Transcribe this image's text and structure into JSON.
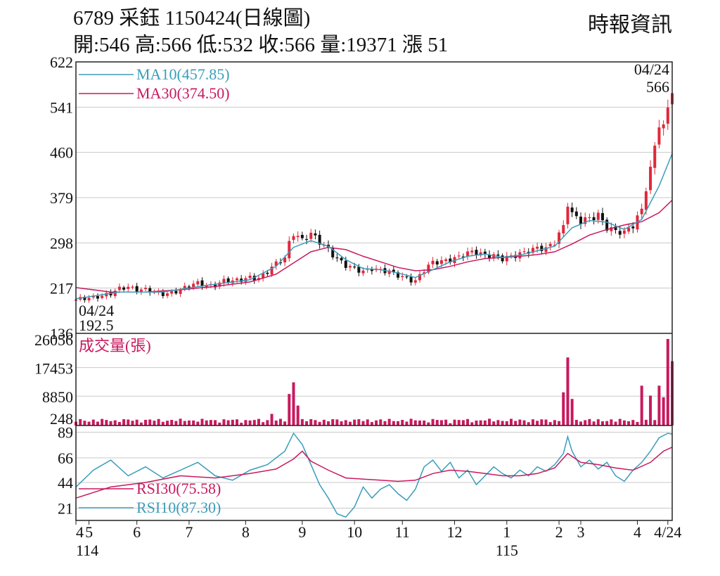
{
  "header": {
    "title": "6789  采鈺 1150424(日線圖)",
    "ohlc": "開:546 高:566 低:532 收:566 量:19371 漲 51",
    "source": "時報資訊"
  },
  "colors": {
    "up": "#e0283a",
    "down": "#111111",
    "ma10": "#3a9dba",
    "ma30": "#c8195e",
    "rsi30": "#c8195e",
    "rsi10": "#3a9dba",
    "volume": "#c8195e",
    "grid": "#c8c8c8",
    "frame": "#222222"
  },
  "chart_data": [
    {
      "type": "candlestick",
      "name": "price",
      "ylim": [
        136,
        622
      ],
      "yticks": [
        "622",
        "541",
        "460",
        "379",
        "298",
        "217",
        "136"
      ],
      "legend": [
        "MA10(457.85)",
        "MA30(374.50)"
      ],
      "annotations": {
        "last_date": "04/24",
        "last_close": "566",
        "low_date": "04/24",
        "low_value": "192.5"
      },
      "price_series": [
        [
          0,
          195
        ],
        [
          4,
          202
        ],
        [
          8,
          206
        ],
        [
          10,
          215
        ],
        [
          12,
          220
        ],
        [
          14,
          216
        ],
        [
          16,
          214
        ],
        [
          18,
          208
        ],
        [
          20,
          206
        ],
        [
          22,
          210
        ],
        [
          24,
          215
        ],
        [
          26,
          220
        ],
        [
          28,
          225
        ],
        [
          30,
          222
        ],
        [
          32,
          224
        ],
        [
          34,
          230
        ],
        [
          36,
          228
        ],
        [
          38,
          232
        ],
        [
          40,
          238
        ],
        [
          42,
          235
        ],
        [
          44,
          245
        ],
        [
          46,
          260
        ],
        [
          48,
          272
        ],
        [
          49,
          300
        ],
        [
          50,
          318
        ],
        [
          51,
          310
        ],
        [
          52,
          302
        ],
        [
          54,
          312
        ],
        [
          56,
          300
        ],
        [
          58,
          288
        ],
        [
          60,
          270
        ],
        [
          62,
          256
        ],
        [
          64,
          250
        ],
        [
          66,
          248
        ],
        [
          68,
          254
        ],
        [
          70,
          248
        ],
        [
          72,
          245
        ],
        [
          74,
          240
        ],
        [
          76,
          236
        ],
        [
          78,
          230
        ],
        [
          80,
          248
        ],
        [
          82,
          262
        ],
        [
          84,
          266
        ],
        [
          86,
          270
        ],
        [
          88,
          272
        ],
        [
          90,
          278
        ],
        [
          92,
          282
        ],
        [
          94,
          278
        ],
        [
          96,
          276
        ],
        [
          98,
          268
        ],
        [
          100,
          272
        ],
        [
          102,
          280
        ],
        [
          104,
          286
        ],
        [
          106,
          288
        ],
        [
          108,
          285
        ],
        [
          110,
          300
        ],
        [
          112,
          330
        ],
        [
          113,
          372
        ],
        [
          114,
          350
        ],
        [
          116,
          335
        ],
        [
          118,
          340
        ],
        [
          120,
          350
        ],
        [
          122,
          328
        ],
        [
          124,
          318
        ],
        [
          126,
          314
        ],
        [
          128,
          330
        ],
        [
          130,
          360
        ],
        [
          131,
          400
        ],
        [
          132,
          430
        ],
        [
          133,
          468
        ],
        [
          134,
          510
        ],
        [
          135,
          500
        ],
        [
          136,
          535
        ],
        [
          137,
          566
        ]
      ],
      "ma10": [
        [
          0,
          198
        ],
        [
          10,
          210
        ],
        [
          20,
          210
        ],
        [
          30,
          222
        ],
        [
          40,
          232
        ],
        [
          46,
          256
        ],
        [
          50,
          290
        ],
        [
          54,
          302
        ],
        [
          58,
          292
        ],
        [
          62,
          268
        ],
        [
          66,
          252
        ],
        [
          70,
          250
        ],
        [
          74,
          244
        ],
        [
          78,
          236
        ],
        [
          82,
          250
        ],
        [
          86,
          264
        ],
        [
          90,
          274
        ],
        [
          94,
          278
        ],
        [
          98,
          272
        ],
        [
          102,
          276
        ],
        [
          106,
          284
        ],
        [
          110,
          292
        ],
        [
          114,
          325
        ],
        [
          118,
          338
        ],
        [
          122,
          335
        ],
        [
          126,
          322
        ],
        [
          130,
          340
        ],
        [
          134,
          400
        ],
        [
          137,
          457.85
        ]
      ],
      "ma30": [
        [
          0,
          218
        ],
        [
          8,
          210
        ],
        [
          16,
          210
        ],
        [
          24,
          214
        ],
        [
          32,
          220
        ],
        [
          40,
          228
        ],
        [
          46,
          242
        ],
        [
          50,
          262
        ],
        [
          54,
          282
        ],
        [
          58,
          290
        ],
        [
          62,
          286
        ],
        [
          66,
          274
        ],
        [
          70,
          264
        ],
        [
          74,
          254
        ],
        [
          78,
          248
        ],
        [
          82,
          250
        ],
        [
          86,
          256
        ],
        [
          90,
          264
        ],
        [
          94,
          270
        ],
        [
          98,
          272
        ],
        [
          102,
          274
        ],
        [
          106,
          277
        ],
        [
          110,
          282
        ],
        [
          114,
          296
        ],
        [
          118,
          312
        ],
        [
          122,
          322
        ],
        [
          126,
          330
        ],
        [
          130,
          336
        ],
        [
          134,
          352
        ],
        [
          137,
          374.5
        ]
      ]
    },
    {
      "type": "bar",
      "name": "volume",
      "label": "成交量(張)",
      "ylim": [
        0,
        26056
      ],
      "yticks": [
        "26056",
        "17453",
        "8850",
        "248"
      ],
      "spikes": [
        [
          45,
          3500
        ],
        [
          49,
          9500
        ],
        [
          50,
          13000
        ],
        [
          51,
          6000
        ],
        [
          112,
          10000
        ],
        [
          113,
          20500
        ],
        [
          114,
          8000
        ],
        [
          130,
          12000
        ],
        [
          132,
          9000
        ],
        [
          134,
          12000
        ],
        [
          135,
          8500
        ],
        [
          136,
          26056
        ],
        [
          137,
          19371
        ]
      ]
    },
    {
      "type": "line",
      "name": "rsi",
      "ylim": [
        10,
        95
      ],
      "yticks": [
        "89",
        "66",
        "44",
        "21"
      ],
      "legend": [
        "RSI30(75.58)",
        "RSI10(87.30)"
      ],
      "rsi30": [
        [
          0,
          30
        ],
        [
          8,
          40
        ],
        [
          16,
          44
        ],
        [
          24,
          50
        ],
        [
          32,
          48
        ],
        [
          40,
          52
        ],
        [
          46,
          56
        ],
        [
          50,
          65
        ],
        [
          52,
          72
        ],
        [
          54,
          63
        ],
        [
          58,
          55
        ],
        [
          62,
          48
        ],
        [
          66,
          47
        ],
        [
          70,
          46
        ],
        [
          74,
          45
        ],
        [
          78,
          46
        ],
        [
          82,
          52
        ],
        [
          86,
          55
        ],
        [
          90,
          54
        ],
        [
          94,
          52
        ],
        [
          98,
          50
        ],
        [
          102,
          50
        ],
        [
          106,
          52
        ],
        [
          110,
          57
        ],
        [
          113,
          70
        ],
        [
          116,
          62
        ],
        [
          120,
          60
        ],
        [
          124,
          57
        ],
        [
          128,
          55
        ],
        [
          132,
          62
        ],
        [
          135,
          72
        ],
        [
          137,
          75.58
        ]
      ],
      "rsi10": [
        [
          0,
          40
        ],
        [
          4,
          55
        ],
        [
          8,
          64
        ],
        [
          12,
          50
        ],
        [
          16,
          58
        ],
        [
          20,
          48
        ],
        [
          24,
          55
        ],
        [
          28,
          62
        ],
        [
          32,
          50
        ],
        [
          36,
          46
        ],
        [
          40,
          55
        ],
        [
          44,
          60
        ],
        [
          48,
          72
        ],
        [
          50,
          88
        ],
        [
          52,
          78
        ],
        [
          54,
          60
        ],
        [
          56,
          42
        ],
        [
          58,
          30
        ],
        [
          60,
          16
        ],
        [
          62,
          13
        ],
        [
          64,
          22
        ],
        [
          66,
          40
        ],
        [
          68,
          30
        ],
        [
          70,
          38
        ],
        [
          72,
          42
        ],
        [
          74,
          34
        ],
        [
          76,
          28
        ],
        [
          78,
          38
        ],
        [
          80,
          58
        ],
        [
          82,
          64
        ],
        [
          84,
          54
        ],
        [
          86,
          62
        ],
        [
          88,
          48
        ],
        [
          90,
          55
        ],
        [
          92,
          42
        ],
        [
          94,
          50
        ],
        [
          96,
          58
        ],
        [
          98,
          52
        ],
        [
          100,
          48
        ],
        [
          102,
          55
        ],
        [
          104,
          50
        ],
        [
          106,
          58
        ],
        [
          108,
          54
        ],
        [
          110,
          60
        ],
        [
          112,
          70
        ],
        [
          113,
          85
        ],
        [
          114,
          72
        ],
        [
          116,
          58
        ],
        [
          118,
          64
        ],
        [
          120,
          56
        ],
        [
          122,
          62
        ],
        [
          124,
          50
        ],
        [
          126,
          45
        ],
        [
          128,
          55
        ],
        [
          130,
          62
        ],
        [
          132,
          72
        ],
        [
          134,
          84
        ],
        [
          136,
          88
        ],
        [
          137,
          87.3
        ]
      ]
    }
  ],
  "x_axis": {
    "ticks": [
      {
        "i": 0,
        "label": "4"
      },
      {
        "i": 3,
        "label": "5"
      },
      {
        "i": 14,
        "label": "6"
      },
      {
        "i": 26,
        "label": "7"
      },
      {
        "i": 39,
        "label": "8"
      },
      {
        "i": 52,
        "label": "9"
      },
      {
        "i": 64,
        "label": "10"
      },
      {
        "i": 75,
        "label": "11"
      },
      {
        "i": 87,
        "label": "12"
      },
      {
        "i": 99,
        "label": "1"
      },
      {
        "i": 111,
        "label": "2"
      },
      {
        "i": 116,
        "label": "3"
      },
      {
        "i": 129,
        "label": "4"
      },
      {
        "i": 136,
        "label": "4/24"
      }
    ],
    "years": [
      {
        "i": 0,
        "label": "114"
      },
      {
        "i": 99,
        "label": "115"
      }
    ]
  }
}
